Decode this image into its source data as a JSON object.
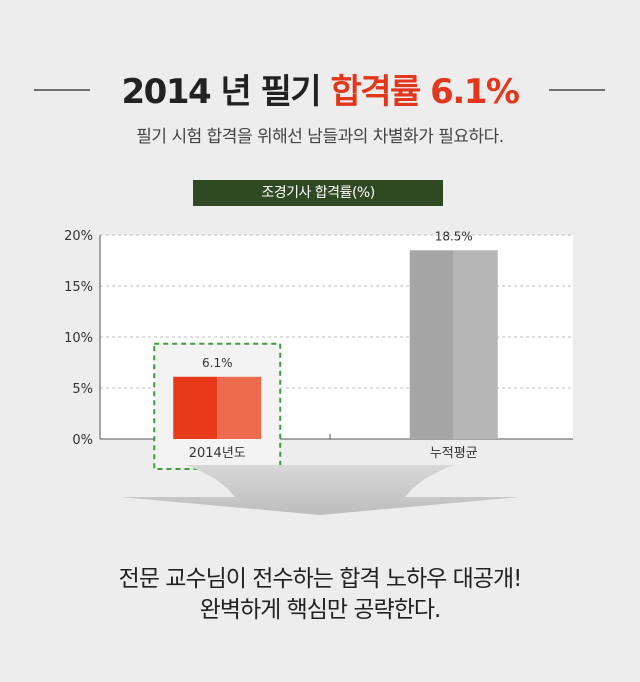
{
  "header": {
    "title_main": "2014 년 필기 ",
    "title_accent": "합격률 6.1%",
    "subtitle": "필기 시험 합격을 위해선 남들과의 차별화가 필요하다."
  },
  "chart_label": "조경기사  합격률(%)",
  "chart_data": {
    "type": "bar",
    "title": "조경기사  합격률(%)",
    "categories": [
      "2014년도",
      "누적평균"
    ],
    "values": [
      6.1,
      18.5
    ],
    "data_labels": [
      "6.1%",
      "18.5%"
    ],
    "ylim": [
      0,
      20
    ],
    "yticks": [
      0,
      5,
      10,
      15,
      20
    ],
    "ytick_labels": [
      "0%",
      "5%",
      "10%",
      "15%",
      "20%"
    ],
    "grid": true,
    "colors": [
      "#e8391a",
      "#a6a6a6"
    ],
    "highlight_category": "2014년도",
    "highlight_color": "#3a9e3a"
  },
  "footer": {
    "line1": "전문 교수님이 전수하는 합격 노하우 대공개!",
    "line2": "완벽하게 핵심만 공략한다."
  }
}
